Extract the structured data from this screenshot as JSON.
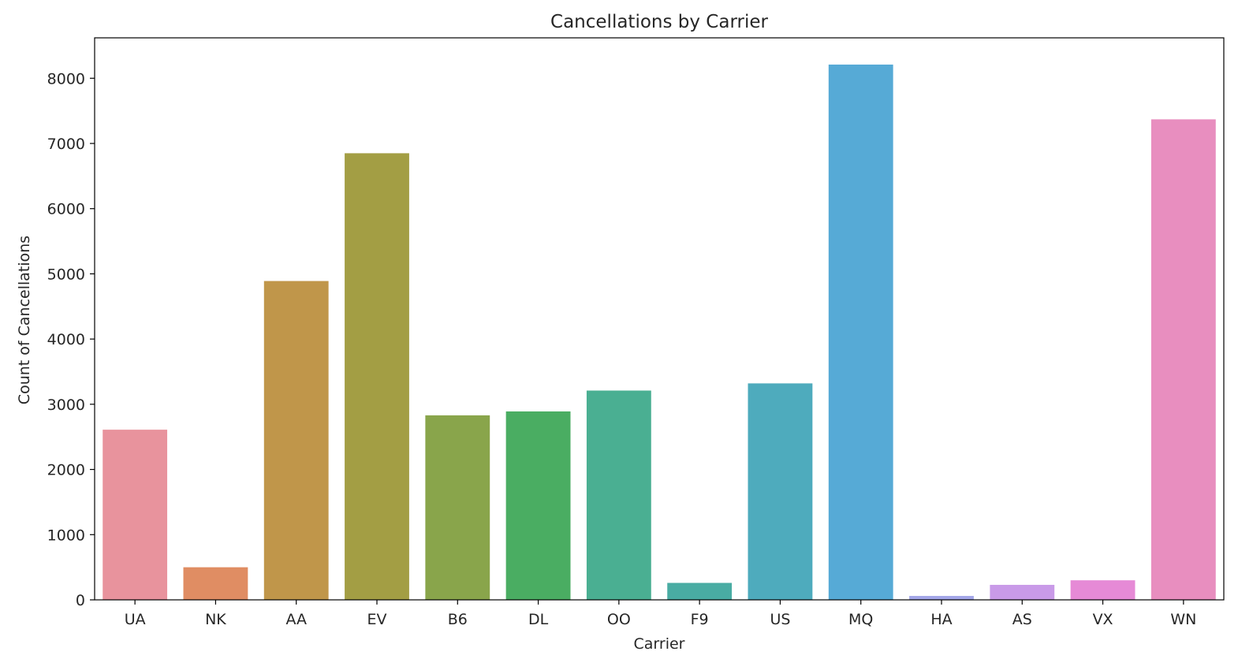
{
  "chart_data": {
    "type": "bar",
    "title": "Cancellations by Carrier",
    "xlabel": "Carrier",
    "ylabel": "Count of Cancellations",
    "categories": [
      "UA",
      "NK",
      "AA",
      "EV",
      "B6",
      "DL",
      "OO",
      "F9",
      "US",
      "MQ",
      "HA",
      "AS",
      "VX",
      "WN"
    ],
    "values": [
      2610,
      500,
      4890,
      6850,
      2830,
      2890,
      3210,
      260,
      3320,
      8210,
      60,
      230,
      300,
      7370
    ],
    "colors": [
      "#e8939d",
      "#e08d63",
      "#c0964a",
      "#a39e44",
      "#89a54b",
      "#4aad62",
      "#4aaf92",
      "#49aca3",
      "#4eabbd",
      "#56aad6",
      "#a3a6e8",
      "#c99ae8",
      "#e68ad6",
      "#e88ebf"
    ],
    "ylim": [
      0,
      8620
    ],
    "yticks": [
      0,
      1000,
      2000,
      3000,
      4000,
      5000,
      6000,
      7000,
      8000
    ],
    "grid": false,
    "legend": "none"
  }
}
